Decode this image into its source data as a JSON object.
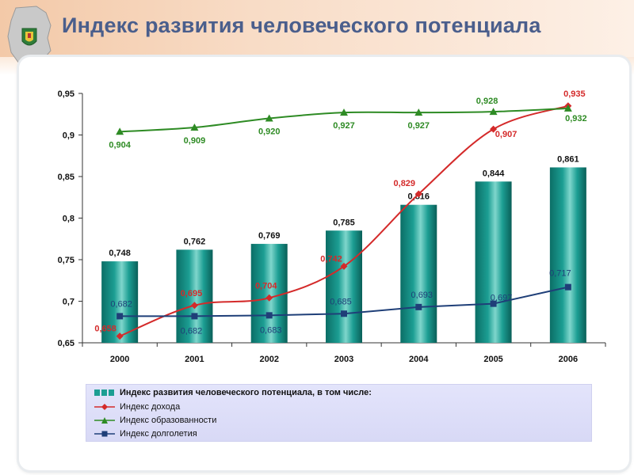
{
  "header": {
    "title": "Индекс развития человеческого потенциала"
  },
  "colors": {
    "bar": "#1c9e93",
    "income": "#d42a2a",
    "education": "#2e8b24",
    "longevity": "#1f3f78",
    "title": "#4a5e8c"
  },
  "chart_data": {
    "type": "bar",
    "categories": [
      "2000",
      "2001",
      "2002",
      "2003",
      "2004",
      "2005",
      "2006"
    ],
    "ylim": [
      0.65,
      0.95
    ],
    "yticks": [
      "0,65",
      "0,7",
      "0,75",
      "0,8",
      "0,85",
      "0,9",
      "0,95"
    ],
    "xlabel": "",
    "ylabel": "",
    "grid": false,
    "legend_position": "bottom",
    "series": [
      {
        "name": "Индекс развития человеческого потенциала, в том числе:",
        "kind": "bar",
        "values": [
          0.748,
          0.762,
          0.769,
          0.785,
          0.816,
          0.844,
          0.861
        ],
        "labels": [
          "0,748",
          "0,762",
          "0,769",
          "0,785",
          "0,816",
          "0,844",
          "0,861"
        ]
      },
      {
        "name": "Индекс дохода",
        "kind": "line",
        "marker": "diamond",
        "values": [
          0.658,
          0.695,
          0.704,
          0.742,
          0.829,
          0.907,
          0.935
        ],
        "labels": [
          "0,658",
          "0,695",
          "0,704",
          "0,742",
          "0,829",
          "0,907",
          "0,935"
        ]
      },
      {
        "name": "Индекс образованности",
        "kind": "line",
        "marker": "triangle",
        "values": [
          0.904,
          0.909,
          0.92,
          0.927,
          0.927,
          0.928,
          0.932
        ],
        "labels": [
          "0,904",
          "0,909",
          "0,920",
          "0,927",
          "0,927",
          "0,928",
          "0,932"
        ]
      },
      {
        "name": "Индекс долголетия",
        "kind": "line",
        "marker": "square",
        "values": [
          0.682,
          0.682,
          0.683,
          0.685,
          0.693,
          0.697,
          0.717
        ],
        "labels": [
          "0,682",
          "0,682",
          "0,683",
          "0,685",
          "0,693",
          "0,697",
          "0,717"
        ]
      }
    ]
  }
}
